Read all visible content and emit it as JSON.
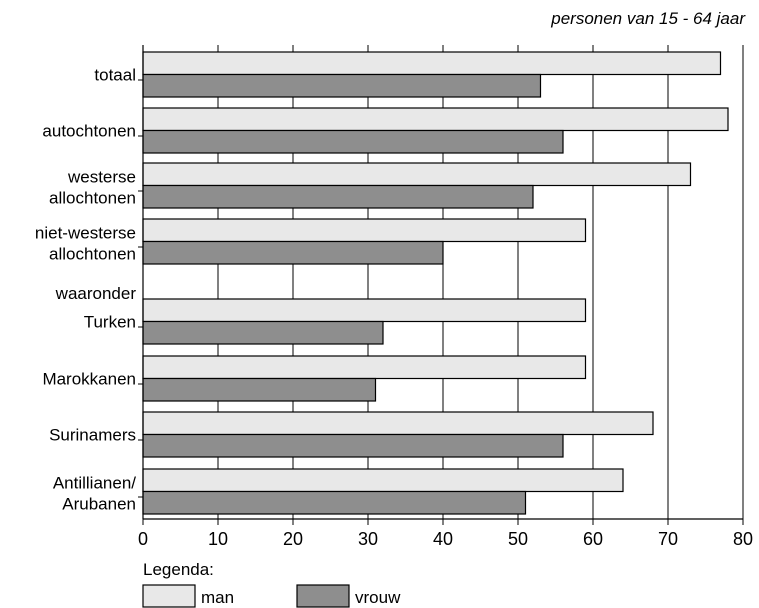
{
  "chart_data": {
    "type": "bar",
    "orientation": "horizontal",
    "subtitle": "personen van 15 - 64 jaar",
    "categories": [
      {
        "label": [
          "totaal"
        ],
        "man": 77,
        "vrouw": 53
      },
      {
        "label": [
          "autochtonen"
        ],
        "man": 78,
        "vrouw": 56
      },
      {
        "label": [
          "westerse",
          "allochtonen"
        ],
        "man": 73,
        "vrouw": 52
      },
      {
        "label": [
          "niet-westerse",
          "allochtonen"
        ],
        "man": 59,
        "vrouw": 40
      },
      {
        "label": [
          "waaronder"
        ],
        "heading": true
      },
      {
        "label": [
          "Turken"
        ],
        "man": 59,
        "vrouw": 32
      },
      {
        "label": [
          "Marokkanen"
        ],
        "man": 59,
        "vrouw": 31
      },
      {
        "label": [
          "Surinamers"
        ],
        "man": 68,
        "vrouw": 56
      },
      {
        "label": [
          "Antillianen/",
          "Arubanen"
        ],
        "man": 64,
        "vrouw": 51
      }
    ],
    "series": [
      {
        "key": "man",
        "name": "man",
        "color": "#e8e8e8"
      },
      {
        "key": "vrouw",
        "name": "vrouw",
        "color": "#8e8e8e"
      }
    ],
    "xlim": [
      0,
      80
    ],
    "xticks": [
      0,
      10,
      20,
      30,
      40,
      50,
      60,
      70,
      80
    ],
    "grid": "vertical",
    "legend": {
      "title": "Legenda:",
      "position": "bottom-left"
    }
  }
}
